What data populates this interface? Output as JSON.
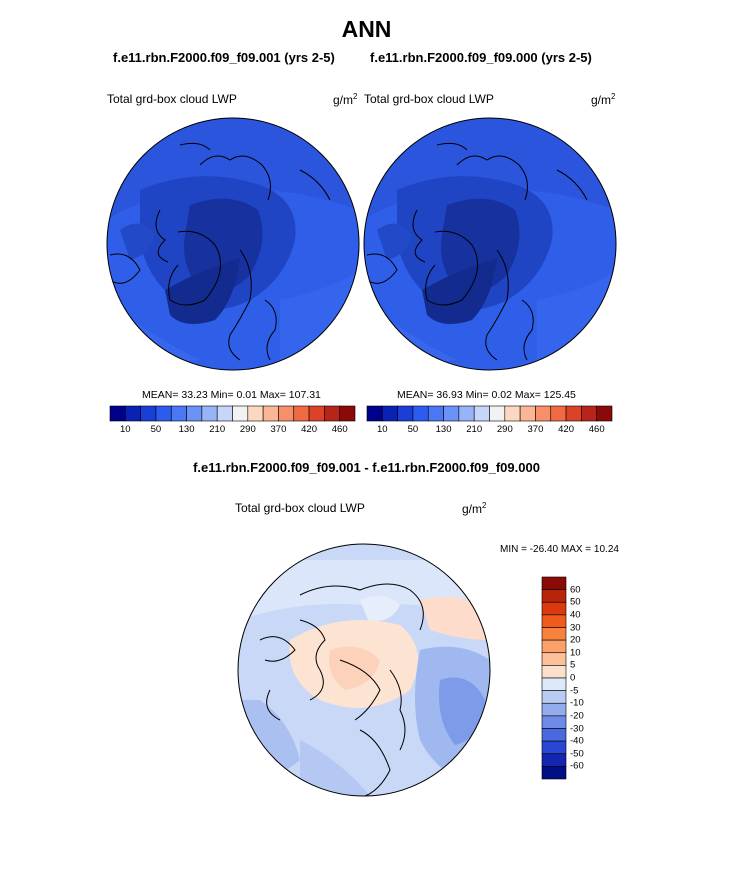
{
  "figure": {
    "title": "ANN",
    "colors": {
      "coastline": "#000000",
      "land_mask_low": "#1a2f9a"
    }
  },
  "panels": [
    {
      "case": "f.e11.rbn.F2000.f09_f09.001 (yrs 2-5)",
      "variable": "Total grd-box cloud LWP",
      "units": "g/m",
      "units_exp": "2",
      "stats_text": "MEAN=  33.23  Min=   0.01  Max= 107.31",
      "stats": {
        "mean": 33.23,
        "min": 0.01,
        "max": 107.31
      }
    },
    {
      "case": "f.e11.rbn.F2000.f09_f09.000 (yrs 2-5)",
      "variable": "Total grd-box cloud LWP",
      "units": "g/m",
      "units_exp": "2",
      "stats_text": "MEAN=  36.93  Min=   0.02  Max= 125.45",
      "stats": {
        "mean": 36.93,
        "min": 0.02,
        "max": 125.45
      }
    }
  ],
  "colorbar_abs": {
    "colors": [
      "#00008b",
      "#0a22b4",
      "#1a3fd6",
      "#2c5bef",
      "#4a78f5",
      "#6b93f7",
      "#98b4f9",
      "#c6d6fb",
      "#f2f2f2",
      "#fcd8c2",
      "#fbb696",
      "#f7906a",
      "#f06a44",
      "#dc4227",
      "#b8231a",
      "#8a0a0a"
    ],
    "tick_labels": [
      "10",
      "50",
      "130",
      "210",
      "290",
      "370",
      "420",
      "460"
    ]
  },
  "diff_panel": {
    "title": "f.e11.rbn.F2000.f09_f09.001 - f.e11.rbn.F2000.f09_f09.000",
    "variable": "Total grd-box cloud LWP",
    "units": "g/m",
    "units_exp": "2",
    "minmax_text": "MIN = -26.40 MAX =  10.24",
    "stats": {
      "min": -26.4,
      "max": 10.24
    }
  },
  "colorbar_diff": {
    "colors": [
      "#8b0a05",
      "#b8230c",
      "#db3a10",
      "#f05a1c",
      "#f7823e",
      "#fba06a",
      "#fcc09a",
      "#fde0cc",
      "#dde8f8",
      "#b9cbf2",
      "#93acec",
      "#6d8be6",
      "#4a69e0",
      "#2a46d4",
      "#1425b0",
      "#000f85"
    ],
    "tick_labels": [
      "60",
      "50",
      "40",
      "30",
      "20",
      "10",
      "5",
      "0",
      "-5",
      "-10",
      "-20",
      "-30",
      "-40",
      "-50",
      "-60"
    ]
  }
}
